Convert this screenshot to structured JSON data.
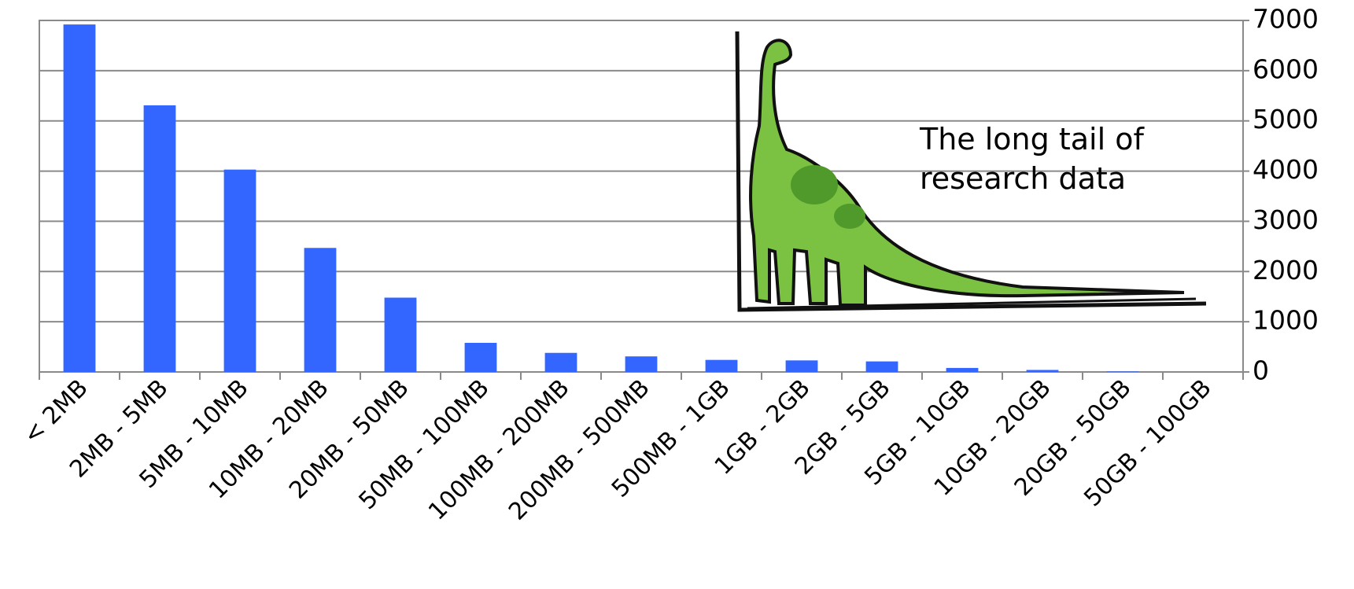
{
  "chart_data": {
    "type": "bar",
    "categories": [
      "< 2MB",
      "2MB - 5MB",
      "5MB - 10MB",
      "10MB - 20MB",
      "20MB - 50MB",
      "50MB - 100MB",
      "100MB - 200MB",
      "200MB - 500MB",
      "500MB - 1GB",
      "1GB - 2GB",
      "2GB - 5GB",
      "5GB - 10GB",
      "10GB - 20GB",
      "20GB - 50GB",
      "50GB - 100GB"
    ],
    "values": [
      6920,
      5310,
      4030,
      2470,
      1480,
      580,
      380,
      310,
      240,
      230,
      210,
      80,
      40,
      10,
      0
    ],
    "color": "#3366ff",
    "ylim": [
      0,
      7000
    ],
    "yticks": [
      0,
      1000,
      2000,
      3000,
      4000,
      5000,
      6000,
      7000
    ],
    "grid": true,
    "y_axis_side": "right",
    "annotation": [
      "The long tail of",
      "research data"
    ]
  }
}
